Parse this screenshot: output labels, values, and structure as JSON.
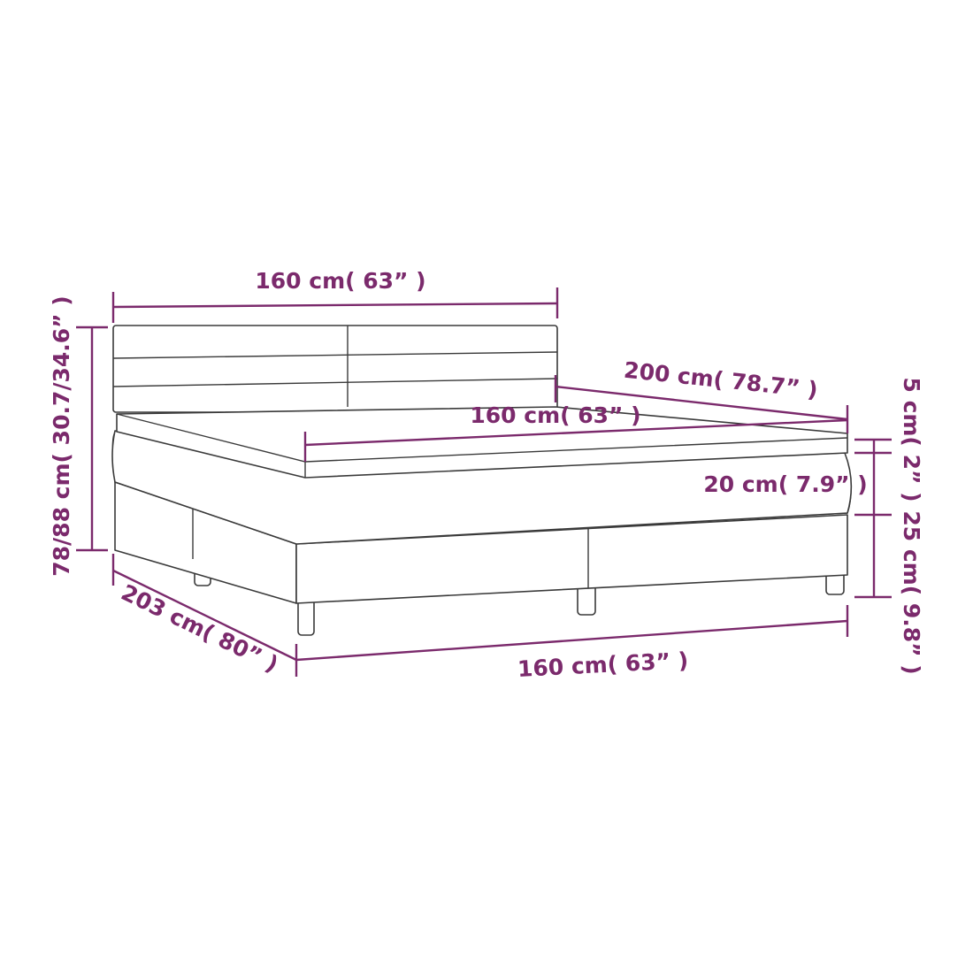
{
  "colors": {
    "dimension": "#7b2a6c",
    "outline": "#3a3a3a"
  },
  "dimensions": {
    "headboard_width": "160 cm( 63” )",
    "total_height": "78/88 cm( 30.7/34.6” )",
    "mattress_length": "200 cm( 78.7” )",
    "mattress_width": "160 cm( 63” )",
    "topper_height": "5 cm( 2” )",
    "mattress_height": "20 cm( 7.9” )",
    "base_height": "25 cm( 9.8” )",
    "total_length": "203 cm( 80” )",
    "base_width": "160 cm( 63” )"
  }
}
